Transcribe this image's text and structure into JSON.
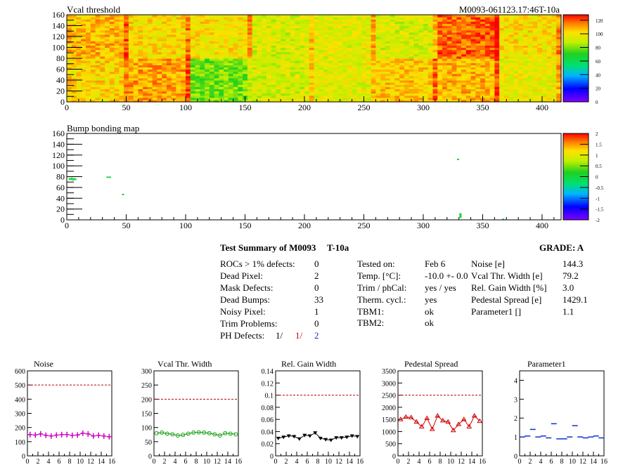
{
  "colors": {
    "red": "#d00000",
    "blue": "#1030d0",
    "magenta": "#d000c0",
    "green": "#10a010",
    "black": "#000000",
    "dashed": "#c00000"
  },
  "chart_data": [
    {
      "type": "heatmap",
      "title": "Vcal threshold",
      "module_label": "M0093-061123.17:46T-10a",
      "xlim": [
        0,
        416
      ],
      "ylim": [
        0,
        160
      ],
      "xticks": [
        "0",
        "50",
        "100",
        "150",
        "200",
        "250",
        "300",
        "350",
        "400"
      ],
      "yticks": [
        "0",
        "20",
        "40",
        "60",
        "80",
        "100",
        "120",
        "140",
        "160"
      ],
      "zlim": [
        0,
        128
      ],
      "zticks": [
        "0",
        "20",
        "40",
        "60",
        "80",
        "100",
        "120"
      ],
      "palette": "rainbow",
      "grid": false,
      "legend": "colorbar-right"
    },
    {
      "type": "heatmap",
      "title": "Bump bonding map",
      "xlim": [
        0,
        416
      ],
      "ylim": [
        0,
        160
      ],
      "xticks": [
        "0",
        "50",
        "100",
        "150",
        "200",
        "250",
        "300",
        "350",
        "400"
      ],
      "yticks": [
        "0",
        "20",
        "40",
        "60",
        "80",
        "100",
        "120",
        "140",
        "160"
      ],
      "zlim": [
        -2,
        2
      ],
      "zticks": [
        "-2",
        "-1.5",
        "-1",
        "-0.5",
        "0",
        "0.5",
        "1",
        "1.5",
        "2"
      ],
      "palette": "rainbow",
      "legend": "colorbar-right",
      "points": [
        {
          "x": 2,
          "y": 76
        },
        {
          "x": 3,
          "y": 75
        },
        {
          "x": 4,
          "y": 77
        },
        {
          "x": 5,
          "y": 74
        },
        {
          "x": 6,
          "y": 76
        },
        {
          "x": 7,
          "y": 75
        },
        {
          "x": 34,
          "y": 79
        },
        {
          "x": 36,
          "y": 79
        },
        {
          "x": 47,
          "y": 47
        },
        {
          "x": 329,
          "y": 112
        },
        {
          "x": 331,
          "y": 5
        },
        {
          "x": 331,
          "y": 7
        },
        {
          "x": 331,
          "y": 9
        },
        {
          "x": 331,
          "y": 11
        },
        {
          "x": 367,
          "y": 1
        }
      ]
    },
    {
      "type": "line",
      "title": "Noise",
      "xlim": [
        0,
        16
      ],
      "ylim": [
        0,
        600
      ],
      "xticks": [
        "0",
        "2",
        "4",
        "6",
        "8",
        "10",
        "12",
        "14",
        "16"
      ],
      "yticks": [
        "0",
        "100",
        "200",
        "300",
        "400",
        "500",
        "600"
      ],
      "threshold": 500,
      "marker": "cross",
      "series": [
        {
          "values": [
            150,
            147,
            155,
            145,
            140,
            146,
            150,
            150,
            145,
            147,
            160,
            155,
            140,
            145,
            140,
            135
          ]
        }
      ]
    },
    {
      "type": "line",
      "title": "Vcal Thr. Width",
      "xlim": [
        0,
        16
      ],
      "ylim": [
        0,
        300
      ],
      "xticks": [
        "0",
        "2",
        "4",
        "6",
        "8",
        "10",
        "12",
        "14",
        "16"
      ],
      "yticks": [
        "0",
        "50",
        "100",
        "150",
        "200",
        "250",
        "300"
      ],
      "threshold": 200,
      "marker": "circle",
      "series": [
        {
          "values": [
            80,
            82,
            78,
            76,
            72,
            74,
            78,
            82,
            83,
            82,
            80,
            76,
            72,
            80,
            78,
            76
          ]
        }
      ]
    },
    {
      "type": "line",
      "title": "Rel. Gain Width",
      "xlim": [
        0,
        16
      ],
      "ylim": [
        0,
        0.14
      ],
      "xticks": [
        "0",
        "2",
        "4",
        "6",
        "8",
        "10",
        "12",
        "14",
        "16"
      ],
      "yticks": [
        "0",
        "0.02",
        "0.04",
        "0.06",
        "0.08",
        "0.1",
        "0.12",
        "0.14"
      ],
      "threshold": 0.1,
      "marker": "triangle-down",
      "series": [
        {
          "values": [
            0.029,
            0.031,
            0.033,
            0.032,
            0.028,
            0.034,
            0.033,
            0.038,
            0.029,
            0.027,
            0.026,
            0.03,
            0.03,
            0.031,
            0.033,
            0.032
          ]
        }
      ]
    },
    {
      "type": "line",
      "title": "Pedestal Spread",
      "xlim": [
        0,
        16
      ],
      "ylim": [
        0,
        3500
      ],
      "xticks": [
        "0",
        "2",
        "4",
        "6",
        "8",
        "10",
        "12",
        "14",
        "16"
      ],
      "yticks": [
        "0",
        "500",
        "1000",
        "1500",
        "2000",
        "2500",
        "3000",
        "3500"
      ],
      "threshold": 2500,
      "marker": "triangle-up",
      "series": [
        {
          "values": [
            1500,
            1600,
            1580,
            1400,
            1200,
            1550,
            1100,
            1650,
            1450,
            1400,
            1050,
            1300,
            1500,
            1200,
            1650,
            1430
          ]
        }
      ]
    },
    {
      "type": "scatter",
      "title": "Parameter1",
      "xlim": [
        0,
        16
      ],
      "ylim": [
        0,
        4.5
      ],
      "xticks": [
        "0",
        "2",
        "4",
        "6",
        "8",
        "10",
        "12",
        "14",
        "16"
      ],
      "yticks": [
        "0",
        "1",
        "2",
        "3",
        "4"
      ],
      "marker": "dash",
      "series": [
        {
          "values": [
            1.0,
            1.05,
            1.4,
            1.0,
            1.05,
            0.95,
            1.7,
            0.9,
            0.9,
            1.0,
            1.6,
            1.0,
            0.95,
            1.0,
            1.05,
            0.95
          ]
        }
      ]
    }
  ],
  "summary": {
    "title": "Test Summary of M0093",
    "tag": "T-10a",
    "grade_label": "GRADE:  A",
    "left_rows": [
      {
        "label": "ROCs > 1% defects:",
        "value": "0"
      },
      {
        "label": "Dead Pixel:",
        "value": "2"
      },
      {
        "label": "Mask Defects:",
        "value": "0"
      },
      {
        "label": "Dead Bumps:",
        "value": "33"
      },
      {
        "label": "Noisy Pixel:",
        "value": "1"
      },
      {
        "label": "Trim Problems:",
        "value": "0"
      }
    ],
    "ph_label": "PH Defects:",
    "ph_values": [
      "1/",
      "1/",
      "2"
    ],
    "mid_rows": [
      {
        "label": "Tested on:",
        "value": "Feb 6"
      },
      {
        "label": "Temp. [°C]:",
        "value": "-10.0 +- 0.0"
      },
      {
        "label": "Trim / phCal:",
        "value": "yes / yes"
      },
      {
        "label": "Therm. cycl.:",
        "value": "yes"
      },
      {
        "label": "TBM1:",
        "value": "ok"
      },
      {
        "label": "TBM2:",
        "value": "ok"
      }
    ],
    "right_rows": [
      {
        "label": "Noise [e]",
        "value": "144.3"
      },
      {
        "label": "Vcal Thr. Width [e]",
        "value": "79.2"
      },
      {
        "label": "Rel. Gain Width [%]",
        "value": "3.0"
      },
      {
        "label": "Pedestal Spread [e]",
        "value": "1429.1"
      },
      {
        "label": "Parameter1 []",
        "value": "1.1"
      }
    ]
  }
}
